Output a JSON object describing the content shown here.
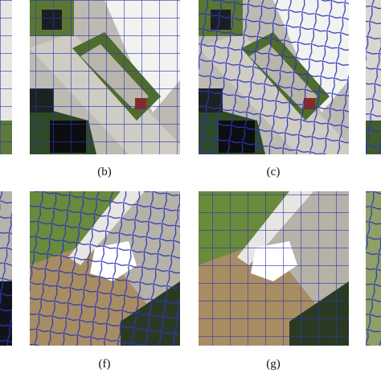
{
  "panels": [
    {
      "label": "(b)"
    },
    {
      "label": "(c)"
    },
    {
      "label": "(f)"
    },
    {
      "label": "(g)"
    }
  ]
}
